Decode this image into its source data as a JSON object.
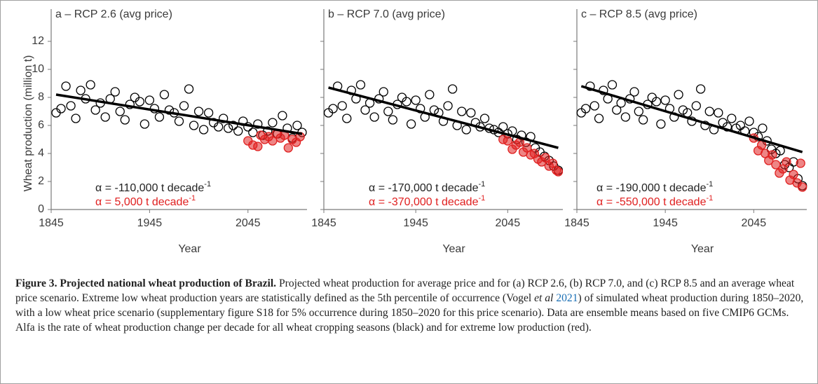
{
  "chart_data": [
    {
      "type": "scatter",
      "title": "a – RCP 2.6 (avg price)",
      "xlabel": "Year",
      "ylabel": "Wheat production (million t)",
      "xlim": [
        1845,
        2105
      ],
      "ylim": [
        0,
        13
      ],
      "xticks": [
        1845,
        1945,
        2045
      ],
      "yticks": [
        0,
        2,
        4,
        6,
        8,
        10,
        12
      ],
      "series": [
        {
          "color": "#000000",
          "marker": "open",
          "x": [
            1850,
            1855,
            1860,
            1865,
            1870,
            1875,
            1880,
            1885,
            1890,
            1895,
            1900,
            1905,
            1910,
            1915,
            1920,
            1925,
            1930,
            1935,
            1940,
            1945,
            1950,
            1955,
            1960,
            1965,
            1970,
            1975,
            1980,
            1985,
            1990,
            1995,
            2000,
            2005,
            2010,
            2015,
            2020,
            2025,
            2030,
            2035,
            2040,
            2045,
            2050,
            2055,
            2060,
            2065,
            2070,
            2075,
            2080,
            2085,
            2090,
            2095,
            2100
          ],
          "values": [
            6.9,
            7.2,
            8.8,
            7.4,
            6.5,
            8.5,
            7.9,
            8.9,
            7.1,
            7.6,
            6.6,
            7.9,
            8.4,
            7.0,
            6.4,
            7.5,
            8.0,
            7.7,
            6.1,
            7.8,
            7.2,
            6.6,
            8.2,
            7.1,
            6.9,
            6.3,
            7.4,
            8.6,
            6.0,
            7.0,
            5.7,
            6.9,
            6.2,
            5.9,
            6.5,
            5.8,
            6.0,
            5.6,
            6.3,
            5.9,
            5.5,
            6.1,
            5.3,
            5.6,
            6.2,
            5.4,
            6.7,
            5.8,
            5.1,
            6.0,
            5.5
          ]
        },
        {
          "color": "#e02020",
          "marker": "filled",
          "x": [
            2045,
            2050,
            2055,
            2058,
            2062,
            2066,
            2070,
            2074,
            2078,
            2082,
            2086,
            2090,
            2094,
            2098
          ],
          "values": [
            4.9,
            4.6,
            4.5,
            5.3,
            5.0,
            5.2,
            4.9,
            5.4,
            5.1,
            5.3,
            4.4,
            5.0,
            4.8,
            5.2
          ]
        },
        {
          "color": "#000000",
          "marker": "line",
          "x": [
            1850,
            2100
          ],
          "values": [
            8.2,
            5.4
          ]
        }
      ],
      "annotations": [
        {
          "text": "α = -110,000 t decade",
          "sup": "-1",
          "color": "#222222"
        },
        {
          "text": "α = 5,000 t decade",
          "sup": "-1",
          "color": "#e02020"
        }
      ]
    },
    {
      "type": "scatter",
      "title": "b – RCP 7.0 (avg price)",
      "xlabel": "Year",
      "xlim": [
        1845,
        2105
      ],
      "ylim": [
        0,
        13
      ],
      "xticks": [
        1845,
        1945,
        2045
      ],
      "yticks": [
        0,
        2,
        4,
        6,
        8,
        10,
        12
      ],
      "ytick_labels": false,
      "series": [
        {
          "color": "#000000",
          "marker": "open",
          "x": [
            1850,
            1855,
            1860,
            1865,
            1870,
            1875,
            1880,
            1885,
            1890,
            1895,
            1900,
            1905,
            1910,
            1915,
            1920,
            1925,
            1930,
            1935,
            1940,
            1945,
            1950,
            1955,
            1960,
            1965,
            1970,
            1975,
            1980,
            1985,
            1990,
            1995,
            2000,
            2005,
            2010,
            2015,
            2020,
            2025,
            2030,
            2035,
            2040,
            2045,
            2050,
            2055,
            2060,
            2065,
            2070,
            2075,
            2080,
            2085,
            2090,
            2095,
            2100
          ],
          "values": [
            6.9,
            7.2,
            8.8,
            7.4,
            6.5,
            8.5,
            7.9,
            8.9,
            7.1,
            7.6,
            6.6,
            7.9,
            8.4,
            7.0,
            6.4,
            7.5,
            8.0,
            7.7,
            6.1,
            7.8,
            7.2,
            6.6,
            8.2,
            7.1,
            6.9,
            6.3,
            7.4,
            8.6,
            6.0,
            7.0,
            5.7,
            6.9,
            6.2,
            5.9,
            6.5,
            5.8,
            5.7,
            5.5,
            5.9,
            5.4,
            5.6,
            5.0,
            5.3,
            4.8,
            5.2,
            4.4,
            4.1,
            3.8,
            3.5,
            3.1,
            2.8
          ]
        },
        {
          "color": "#e02020",
          "marker": "filled",
          "x": [
            2040,
            2045,
            2050,
            2054,
            2058,
            2062,
            2066,
            2070,
            2074,
            2078,
            2082,
            2086,
            2090,
            2094,
            2098,
            2100
          ],
          "values": [
            5.0,
            4.9,
            4.3,
            4.6,
            4.8,
            4.1,
            4.4,
            3.9,
            4.0,
            3.6,
            3.4,
            3.7,
            3.1,
            3.3,
            2.8,
            2.7
          ]
        },
        {
          "color": "#000000",
          "marker": "line",
          "x": [
            1850,
            2100
          ],
          "values": [
            8.7,
            4.4
          ]
        }
      ],
      "annotations": [
        {
          "text": "α = -170,000 t decade",
          "sup": "-1",
          "color": "#222222"
        },
        {
          "text": "α = -370,000 t decade",
          "sup": "-1",
          "color": "#e02020"
        }
      ]
    },
    {
      "type": "scatter",
      "title": "c – RCP 8.5 (avg price)",
      "xlabel": "Year",
      "xlim": [
        1845,
        2105
      ],
      "ylim": [
        0,
        13
      ],
      "xticks": [
        1845,
        1945,
        2045
      ],
      "yticks": [
        0,
        2,
        4,
        6,
        8,
        10,
        12
      ],
      "ytick_labels": false,
      "series": [
        {
          "color": "#000000",
          "marker": "open",
          "x": [
            1850,
            1855,
            1860,
            1865,
            1870,
            1875,
            1880,
            1885,
            1890,
            1895,
            1900,
            1905,
            1910,
            1915,
            1920,
            1925,
            1930,
            1935,
            1940,
            1945,
            1950,
            1955,
            1960,
            1965,
            1970,
            1975,
            1980,
            1985,
            1990,
            1995,
            2000,
            2005,
            2010,
            2015,
            2020,
            2025,
            2030,
            2035,
            2040,
            2045,
            2050,
            2055,
            2060,
            2065,
            2070,
            2075,
            2080,
            2085,
            2090,
            2095,
            2100
          ],
          "values": [
            6.9,
            7.2,
            8.8,
            7.4,
            6.5,
            8.5,
            7.9,
            8.9,
            7.1,
            7.6,
            6.6,
            7.9,
            8.4,
            7.0,
            6.4,
            7.5,
            8.0,
            7.7,
            6.1,
            7.8,
            7.2,
            6.6,
            8.2,
            7.1,
            6.9,
            6.3,
            7.4,
            8.6,
            6.0,
            7.0,
            5.7,
            6.9,
            6.2,
            5.9,
            6.5,
            5.8,
            6.0,
            5.6,
            6.3,
            5.5,
            5.2,
            5.8,
            4.9,
            4.3,
            4.0,
            4.2,
            3.2,
            3.0,
            3.4,
            2.2,
            1.7
          ]
        },
        {
          "color": "#e02020",
          "marker": "filled",
          "x": [
            2045,
            2050,
            2054,
            2058,
            2062,
            2066,
            2070,
            2074,
            2078,
            2082,
            2086,
            2090,
            2094,
            2098,
            2100
          ],
          "values": [
            5.1,
            4.2,
            4.6,
            4.0,
            3.5,
            3.9,
            3.2,
            2.6,
            2.9,
            3.4,
            2.1,
            2.5,
            1.9,
            3.3,
            1.6
          ]
        },
        {
          "color": "#000000",
          "marker": "line",
          "x": [
            1850,
            2100
          ],
          "values": [
            8.8,
            4.1
          ]
        }
      ],
      "annotations": [
        {
          "text": "α = -190,000 t decade",
          "sup": "-1",
          "color": "#222222"
        },
        {
          "text": "α = -550,000 t decade",
          "sup": "-1",
          "color": "#e02020"
        }
      ]
    }
  ],
  "caption": {
    "title": "Figure 3. Projected national wheat production of Brazil.",
    "body": " Projected wheat production for average price and for (a) RCP 2.6, (b) RCP 7.0, and (c) RCP 8.5 and an average wheat price scenario. Extreme low wheat production years are statistically defined as the 5th percentile of occurrence (Vogel ",
    "italic": "et al",
    "year": "2021",
    "rest": ") of simulated wheat production during 1850–2020, with a low wheat price scenario (supplementary figure S18 for 5% occurrence during 1850–2020 for this price scenario). Data are ensemble means based on five CMIP6 GCMs. Alfa is the rate of wheat production change per decade for all wheat cropping seasons (black) and for extreme low production (red)."
  }
}
